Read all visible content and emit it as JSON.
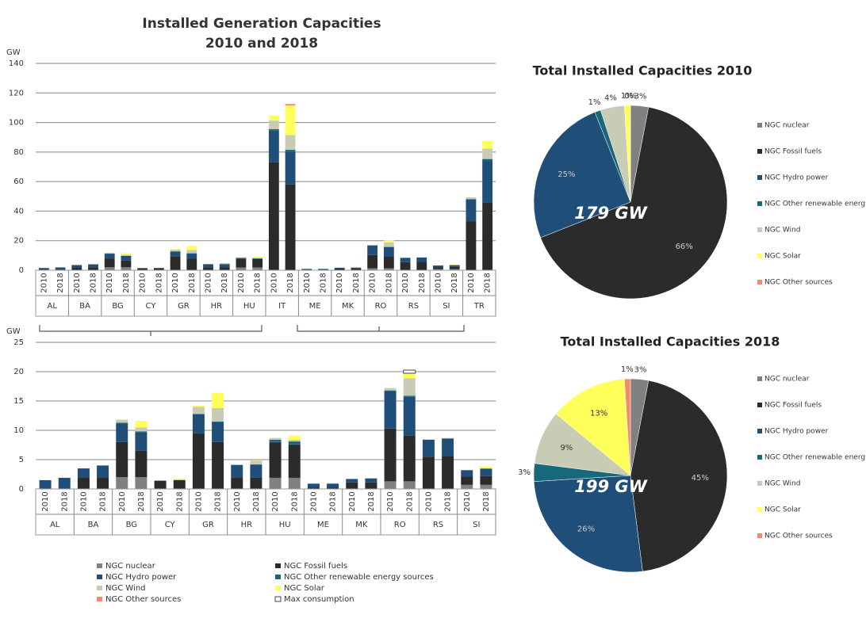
{
  "chart_data": [
    {
      "type": "stacked-bar",
      "title": "Installed Generation Capacities",
      "subtitle": "2010 and 2018",
      "y_label": "GW",
      "categories": [
        "2010",
        "2018",
        "2010",
        "2018",
        "2010",
        "2018",
        "2010",
        "2018",
        "2010",
        "2018",
        "2010",
        "2018",
        "2010",
        "2018",
        "2010",
        "2018",
        "2010",
        "2018",
        "2010",
        "2018",
        "2010",
        "2018",
        "2010",
        "2018",
        "2010",
        "2018",
        "2010",
        "2018"
      ],
      "groups": [
        "AL",
        "BA",
        "BG",
        "CY",
        "GR",
        "HR",
        "HU",
        "IT",
        "ME",
        "MK",
        "RO",
        "RS",
        "SI",
        "TR"
      ],
      "ylim": [
        0,
        140
      ],
      "yticks": [
        0,
        20,
        40,
        60,
        80,
        100,
        120,
        140
      ],
      "grid": true,
      "series": [
        {
          "name": "NGC nuclear",
          "color": "#808080",
          "values": [
            0,
            0,
            0,
            0,
            2,
            2,
            0,
            0,
            0,
            0,
            0,
            0,
            1.9,
            1.9,
            0,
            0,
            0,
            0,
            0,
            0,
            1.3,
            1.3,
            0,
            0,
            0.7,
            0.7,
            0,
            0
          ]
        },
        {
          "name": "NGC Fossil fuels",
          "color": "#2b2b2b",
          "values": [
            0,
            0,
            2,
            2,
            6,
            4.5,
            1.4,
            1.5,
            9.5,
            8,
            2,
            1.9,
            6,
            5.6,
            73,
            58,
            0.2,
            0.2,
            1.1,
            1.1,
            9,
            7.8,
            5.5,
            5.6,
            1.4,
            1.5,
            33,
            46
          ]
        },
        {
          "name": "NGC Hydro power",
          "color": "#1f4e79",
          "values": [
            1.5,
            1.9,
            1.5,
            2,
            3.2,
            3.2,
            0,
            0,
            3.2,
            3.4,
            2.1,
            2.2,
            0.1,
            0.1,
            21.5,
            22,
            0.7,
            0.7,
            0.6,
            0.7,
            6.4,
            6.6,
            2.9,
            3,
            1.1,
            1.2,
            15,
            28
          ]
        },
        {
          "name": "NGC Other renewable energy sources",
          "color": "#17687a",
          "values": [
            0,
            0,
            0,
            0,
            0.1,
            0.1,
            0,
            0,
            0.1,
            0.1,
            0,
            0.1,
            0.4,
            0.5,
            1,
            1.5,
            0,
            0,
            0,
            0,
            0.1,
            0.2,
            0,
            0,
            0,
            0.1,
            0.1,
            1.3
          ]
        },
        {
          "name": "NGC Wind",
          "color": "#c8ccb4",
          "values": [
            0,
            0,
            0,
            0,
            0.5,
            0.7,
            0.1,
            0.15,
            1.2,
            2.3,
            0,
            0.6,
            0.3,
            0.3,
            5.8,
            10,
            0,
            0.1,
            0,
            0.04,
            0.4,
            3,
            0,
            0.1,
            0,
            0,
            1.3,
            7
          ]
        },
        {
          "name": "NGC Solar",
          "color": "#ffff5a",
          "values": [
            0,
            0,
            0,
            0,
            0.1,
            1.1,
            0,
            0.1,
            0.2,
            2.6,
            0,
            0.1,
            0,
            0.7,
            3.5,
            20,
            0,
            0,
            0,
            0,
            0,
            1.4,
            0,
            0,
            0,
            0.3,
            0,
            5.1
          ]
        },
        {
          "name": "NGC Other sources",
          "color": "#f08c6a",
          "values": [
            0,
            0,
            0,
            0,
            0,
            0,
            0,
            0,
            0,
            0,
            0,
            0,
            0,
            0,
            0,
            1,
            0,
            0,
            0,
            0,
            0,
            0,
            0,
            0,
            0,
            0,
            0,
            0
          ]
        }
      ]
    },
    {
      "type": "stacked-bar",
      "y_label": "GW",
      "categories": [
        "2010",
        "2018",
        "2010",
        "2018",
        "2010",
        "2018",
        "2010",
        "2018",
        "2010",
        "2018",
        "2010",
        "2018",
        "2010",
        "2018",
        "2010",
        "2018",
        "2010",
        "2018",
        "2010",
        "2018",
        "2010",
        "2018",
        "2010",
        "2018"
      ],
      "groups": [
        "AL",
        "BA",
        "BG",
        "CY",
        "GR",
        "HR",
        "HU",
        "ME",
        "MK",
        "RO",
        "RS",
        "SI"
      ],
      "ylim": [
        0,
        25
      ],
      "yticks": [
        0,
        5,
        10,
        15,
        20,
        25
      ],
      "grid": true,
      "series": [
        {
          "name": "NGC nuclear",
          "color": "#808080",
          "values": [
            0,
            0,
            0,
            0,
            2,
            2,
            0,
            0,
            0,
            0,
            0,
            0,
            1.9,
            1.9,
            0,
            0,
            0,
            0,
            1.3,
            1.3,
            0,
            0,
            0.7,
            0.7
          ]
        },
        {
          "name": "NGC Fossil fuels",
          "color": "#2b2b2b",
          "values": [
            0,
            0,
            2,
            2,
            6,
            4.5,
            1.4,
            1.5,
            9.5,
            8,
            2,
            1.9,
            6,
            5.6,
            0.2,
            0.2,
            1.1,
            1.1,
            9,
            7.8,
            5.5,
            5.6,
            1.4,
            1.5
          ]
        },
        {
          "name": "NGC Hydro power",
          "color": "#1f4e79",
          "values": [
            1.5,
            1.9,
            1.5,
            2,
            3.2,
            3.2,
            0,
            0,
            3.2,
            3.4,
            2.1,
            2.2,
            0.1,
            0.1,
            0.7,
            0.7,
            0.6,
            0.7,
            6.4,
            6.6,
            2.9,
            3,
            1.1,
            1.2
          ]
        },
        {
          "name": "NGC Other renewable energy sources",
          "color": "#17687a",
          "values": [
            0,
            0,
            0,
            0,
            0.1,
            0.1,
            0,
            0,
            0.1,
            0.1,
            0,
            0.1,
            0.4,
            0.5,
            0,
            0,
            0,
            0,
            0.1,
            0.2,
            0,
            0,
            0,
            0.1
          ]
        },
        {
          "name": "NGC Wind",
          "color": "#c8ccb4",
          "values": [
            0,
            0,
            0,
            0,
            0.5,
            0.7,
            0.1,
            0.15,
            1.2,
            2.3,
            0,
            0.6,
            0.3,
            0.3,
            0,
            0.1,
            0,
            0.04,
            0.4,
            3,
            0,
            0.1,
            0,
            0
          ]
        },
        {
          "name": "NGC Solar",
          "color": "#ffff5a",
          "values": [
            0,
            0,
            0,
            0,
            0.1,
            1.1,
            0,
            0.1,
            0.2,
            2.6,
            0,
            0.1,
            0,
            0.7,
            0,
            0,
            0,
            0,
            0,
            1.4,
            0,
            0,
            0,
            0.3
          ]
        },
        {
          "name": "NGC Other sources",
          "color": "#f08c6a",
          "values": [
            0,
            0,
            0,
            0,
            0,
            0,
            0,
            0,
            0,
            0,
            0,
            0,
            0,
            0,
            0,
            0,
            0,
            0,
            0,
            0,
            0,
            0,
            0,
            0
          ]
        },
        {
          "name": "Max consumption",
          "type": "marker",
          "color": "#444444",
          "values": [
            null,
            null,
            null,
            null,
            null,
            null,
            null,
            null,
            null,
            null,
            null,
            null,
            null,
            null,
            null,
            null,
            null,
            null,
            null,
            20,
            null,
            null,
            null,
            null
          ]
        }
      ]
    },
    {
      "type": "pie",
      "title": "Total Installed Capacities  2010",
      "annotation": "179 GW",
      "categories": [
        "NGC nuclear",
        "NGC Fossil fuels",
        "NGC Hydro power",
        "NGC Other renewable energy sources",
        "NGC Wind",
        "NGC Solar",
        "NGC Other sources"
      ],
      "colors": [
        "#808080",
        "#2b2b2b",
        "#1f4e79",
        "#17687a",
        "#c8ccb4",
        "#ffff5a",
        "#f08c6a"
      ],
      "values": [
        3,
        66,
        25,
        1,
        4,
        1,
        0
      ],
      "value_labels": [
        "3%",
        "66%",
        "25%",
        "1%",
        "4%",
        "1%",
        "0%"
      ]
    },
    {
      "type": "pie",
      "title": "Total Installed Capacities  2018",
      "annotation": "199 GW",
      "categories": [
        "NGC nuclear",
        "NGC Fossil fuels",
        "NGC Hydro power",
        "NGC Other renewable energy sources",
        "NGC Wind",
        "NGC Solar",
        "NGC Other sources"
      ],
      "colors": [
        "#808080",
        "#2b2b2b",
        "#1f4e79",
        "#17687a",
        "#c8ccb4",
        "#ffff5a",
        "#f08c6a"
      ],
      "values": [
        3,
        45,
        26,
        3,
        9,
        13,
        1
      ],
      "value_labels": [
        "3%",
        "45%",
        "26%",
        "3%",
        "9%",
        "13%",
        "1%"
      ]
    }
  ]
}
